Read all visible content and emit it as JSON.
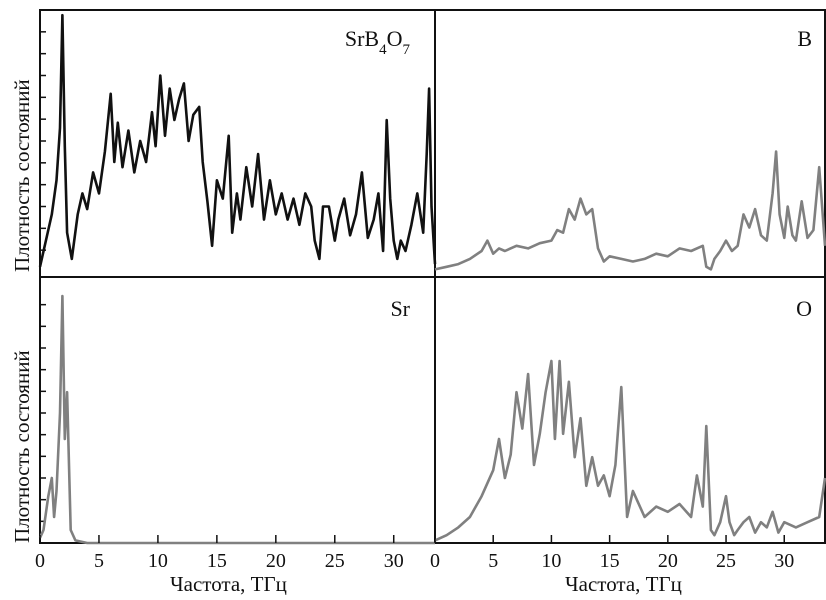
{
  "chart_data": [
    {
      "type": "line",
      "panel": "top-left",
      "label_parts": [
        "SrB",
        "4",
        "O",
        "7"
      ],
      "ylabel": "Плотность состояний",
      "xlim": [
        0,
        33.5
      ],
      "ylim": [
        0,
        100
      ],
      "color": "#111111",
      "x": [
        0,
        0.5,
        1.0,
        1.4,
        1.7,
        1.9,
        2.1,
        2.3,
        2.7,
        3.2,
        3.6,
        4.0,
        4.5,
        5.0,
        5.5,
        6.0,
        6.3,
        6.6,
        7.0,
        7.5,
        8.0,
        8.5,
        9.0,
        9.5,
        9.8,
        10.2,
        10.6,
        11.0,
        11.4,
        11.8,
        12.2,
        12.6,
        13.0,
        13.5,
        13.8,
        14.2,
        14.6,
        15.0,
        15.5,
        16.0,
        16.3,
        16.7,
        17.0,
        17.5,
        18.0,
        18.5,
        19.0,
        19.5,
        20.0,
        20.5,
        21.0,
        21.5,
        22.0,
        22.5,
        23.0,
        23.3,
        23.7,
        24.0,
        24.5,
        25.0,
        25.3,
        25.8,
        26.3,
        26.8,
        27.3,
        27.8,
        28.3,
        28.7,
        29.1,
        29.4,
        29.7,
        30.0,
        30.3,
        30.6,
        31.0,
        31.5,
        32.0,
        32.5,
        32.8,
        33.0,
        33.2,
        33.5
      ],
      "y": [
        2,
        12,
        22,
        35,
        55,
        98,
        48,
        15,
        5,
        22,
        30,
        24,
        38,
        30,
        46,
        68,
        42,
        57,
        40,
        54,
        38,
        50,
        42,
        61,
        48,
        75,
        52,
        70,
        58,
        66,
        72,
        50,
        60,
        63,
        42,
        27,
        10,
        35,
        28,
        52,
        15,
        30,
        20,
        40,
        25,
        45,
        20,
        35,
        22,
        30,
        20,
        28,
        18,
        30,
        25,
        12,
        5,
        25,
        25,
        12,
        20,
        28,
        14,
        22,
        38,
        13,
        20,
        30,
        8,
        58,
        28,
        12,
        5,
        12,
        8,
        18,
        30,
        15,
        45,
        70,
        25,
        3
      ]
    },
    {
      "type": "line",
      "panel": "top-right",
      "label_parts": [
        "B"
      ],
      "xlim": [
        0,
        33.5
      ],
      "ylim": [
        0,
        100
      ],
      "color": "#808080",
      "x": [
        0,
        1,
        2,
        3,
        4,
        4.5,
        5,
        5.5,
        6,
        7,
        8,
        9,
        10,
        10.5,
        11,
        11.5,
        12,
        12.5,
        13,
        13.5,
        14,
        14.5,
        15,
        16,
        17,
        18,
        19,
        20,
        21,
        22,
        23,
        23.3,
        23.7,
        24,
        24.5,
        25,
        25.5,
        26,
        26.5,
        27,
        27.5,
        28,
        28.5,
        29,
        29.3,
        29.6,
        30,
        30.3,
        30.7,
        31,
        31.5,
        32,
        32.5,
        33,
        33.5
      ],
      "y": [
        1,
        2,
        3,
        5,
        8,
        12,
        7,
        9,
        8,
        10,
        9,
        11,
        12,
        16,
        15,
        24,
        20,
        28,
        22,
        24,
        9,
        4,
        6,
        5,
        4,
        5,
        7,
        6,
        9,
        8,
        10,
        2,
        1,
        5,
        8,
        12,
        8,
        10,
        22,
        17,
        24,
        14,
        12,
        30,
        46,
        22,
        13,
        25,
        14,
        12,
        27,
        13,
        16,
        40,
        10
      ]
    },
    {
      "type": "line",
      "panel": "bottom-left",
      "label_parts": [
        "Sr"
      ],
      "ylabel": "Плотность состояний",
      "xlabel": "Частота, ТГц",
      "xlim": [
        0,
        33.5
      ],
      "ylim": [
        0,
        100
      ],
      "color": "#808080",
      "xticks": [
        0,
        5,
        10,
        15,
        20,
        25,
        30
      ],
      "x": [
        0,
        0.3,
        0.7,
        1.0,
        1.2,
        1.4,
        1.7,
        1.9,
        2.1,
        2.3,
        2.6,
        3.0,
        4.0,
        33.5
      ],
      "y": [
        2,
        5,
        18,
        25,
        10,
        20,
        50,
        95,
        40,
        58,
        5,
        1,
        0,
        0
      ]
    },
    {
      "type": "line",
      "panel": "bottom-right",
      "label_parts": [
        "O"
      ],
      "xlabel": "Частота, ТГц",
      "xlim": [
        0,
        33.5
      ],
      "ylim": [
        0,
        100
      ],
      "color": "#808080",
      "xticks": [
        0,
        5,
        10,
        15,
        20,
        25,
        30
      ],
      "x": [
        0,
        1,
        2,
        3,
        4,
        5,
        5.5,
        6,
        6.5,
        7,
        7.5,
        8,
        8.5,
        9,
        9.5,
        10,
        10.3,
        10.7,
        11,
        11.5,
        12,
        12.5,
        13,
        13.5,
        14,
        14.5,
        15,
        15.5,
        16,
        16.5,
        17,
        18,
        19,
        20,
        21,
        22,
        22.5,
        23,
        23.3,
        23.7,
        24,
        24.5,
        25,
        25.3,
        25.7,
        26,
        26.5,
        27,
        27.5,
        28,
        28.5,
        29,
        29.5,
        30,
        31,
        32,
        33,
        33.5
      ],
      "y": [
        1,
        3,
        6,
        10,
        18,
        28,
        40,
        25,
        34,
        58,
        44,
        65,
        30,
        42,
        58,
        70,
        40,
        70,
        42,
        62,
        33,
        48,
        22,
        33,
        22,
        26,
        18,
        30,
        60,
        10,
        20,
        10,
        14,
        12,
        15,
        10,
        26,
        14,
        45,
        5,
        3,
        8,
        18,
        8,
        3,
        5,
        8,
        10,
        4,
        8,
        6,
        12,
        4,
        8,
        6,
        8,
        10,
        25
      ]
    }
  ]
}
